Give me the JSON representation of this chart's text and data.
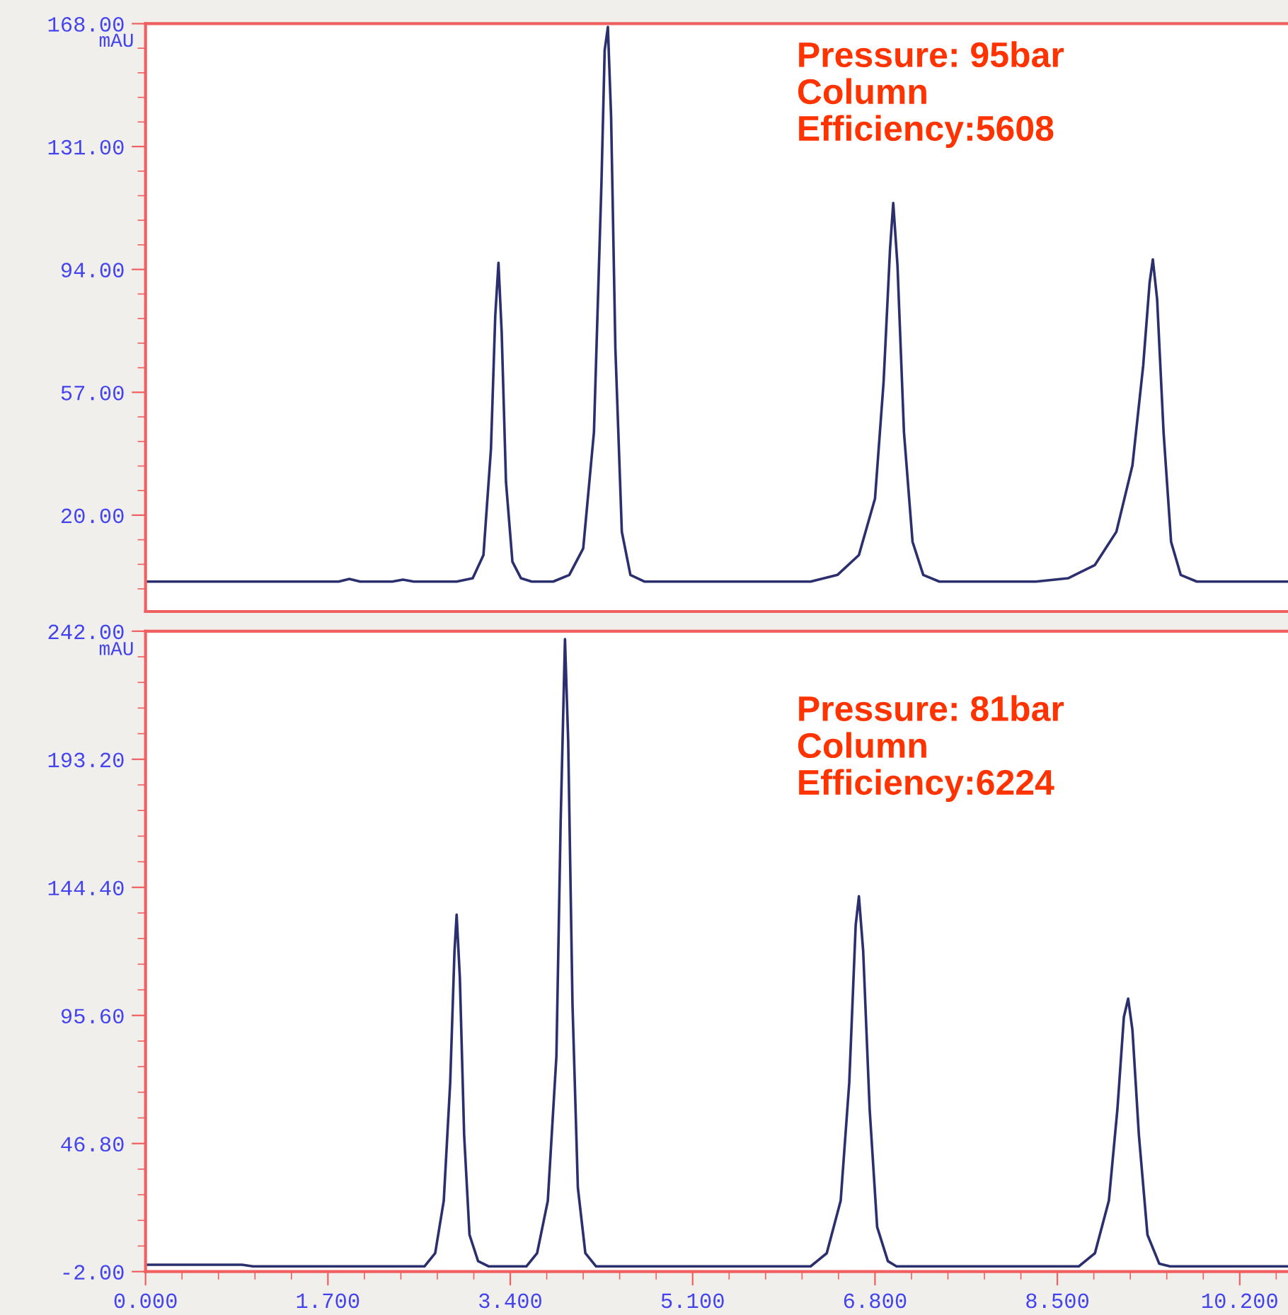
{
  "chart_data": [
    {
      "type": "line",
      "ylabel": "mAU",
      "annotations": [
        "Pressure: 95bar\nColumn\nEfficiency:5608"
      ],
      "tick_labels": "y",
      "grid": false,
      "xlim": [
        0,
        10.65
      ],
      "ylim": [
        -9,
        168
      ],
      "yticks": [
        {
          "value": 20,
          "label": "20.00"
        },
        {
          "value": 57,
          "label": "57.00"
        },
        {
          "value": 94,
          "label": "94.00"
        },
        {
          "value": 131,
          "label": "131.00"
        },
        {
          "value": 168,
          "label": "168.00"
        }
      ],
      "series": [
        {
          "color": "#2b2f6e",
          "x": [
            0,
            1.0,
            1.8,
            1.9,
            2.0,
            2.3,
            2.4,
            2.5,
            2.9,
            3.05,
            3.15,
            3.22,
            3.26,
            3.29,
            3.32,
            3.36,
            3.42,
            3.5,
            3.6,
            3.8,
            3.95,
            4.08,
            4.18,
            4.25,
            4.28,
            4.31,
            4.34,
            4.38,
            4.44,
            4.52,
            4.65,
            5.0,
            6.2,
            6.45,
            6.65,
            6.8,
            6.88,
            6.94,
            6.97,
            7.01,
            7.07,
            7.15,
            7.25,
            7.4,
            8.3,
            8.6,
            8.85,
            9.05,
            9.2,
            9.3,
            9.36,
            9.39,
            9.43,
            9.49,
            9.56,
            9.65,
            9.8,
            10.65
          ],
          "values": [
            0,
            0,
            0,
            0.8,
            0,
            0,
            0.6,
            0,
            0,
            1,
            8,
            40,
            80,
            96,
            75,
            30,
            6,
            1,
            0,
            0,
            2,
            10,
            45,
            120,
            160,
            167,
            140,
            70,
            15,
            2,
            0,
            0,
            0,
            2,
            8,
            25,
            60,
            100,
            114,
            95,
            45,
            12,
            2,
            0,
            0,
            1,
            5,
            15,
            35,
            65,
            90,
            97,
            85,
            45,
            12,
            2,
            0,
            0
          ]
        }
      ]
    },
    {
      "type": "line",
      "ylabel": "mAU",
      "annotations": [
        "Pressure: 81bar\nColumn\nEfficiency:6224"
      ],
      "grid": false,
      "xlim": [
        0,
        10.65
      ],
      "ylim": [
        -2,
        242
      ],
      "xticks": [
        {
          "value": 0,
          "label": "0.000"
        },
        {
          "value": 1.7,
          "label": "1.700"
        },
        {
          "value": 3.4,
          "label": "3.400"
        },
        {
          "value": 5.1,
          "label": "5.100"
        },
        {
          "value": 6.8,
          "label": "6.800"
        },
        {
          "value": 8.5,
          "label": "8.500"
        },
        {
          "value": 10.2,
          "label": "10.200"
        }
      ],
      "yticks": [
        {
          "value": -2,
          "label": "-2.00"
        },
        {
          "value": 46.8,
          "label": "46.80"
        },
        {
          "value": 95.6,
          "label": "95.60"
        },
        {
          "value": 144.4,
          "label": "144.40"
        },
        {
          "value": 193.2,
          "label": "193.20"
        },
        {
          "value": 242,
          "label": "242.00"
        }
      ],
      "series": [
        {
          "color": "#2b2f6e",
          "x": [
            0,
            0.9,
            1.0,
            2.6,
            2.7,
            2.78,
            2.84,
            2.88,
            2.9,
            2.93,
            2.97,
            3.02,
            3.1,
            3.2,
            3.55,
            3.65,
            3.75,
            3.83,
            3.87,
            3.91,
            3.94,
            3.98,
            4.03,
            4.1,
            4.2,
            6.2,
            6.35,
            6.48,
            6.56,
            6.62,
            6.65,
            6.69,
            6.75,
            6.82,
            6.92,
            7.0,
            8.7,
            8.85,
            8.98,
            9.06,
            9.12,
            9.16,
            9.2,
            9.26,
            9.34,
            9.45,
            9.55,
            10.65
          ],
          "values": [
            0.6,
            0.6,
            0,
            0,
            5,
            25,
            70,
            120,
            134,
            110,
            50,
            12,
            2,
            0,
            0,
            5,
            25,
            80,
            170,
            239,
            200,
            100,
            30,
            5,
            0,
            0,
            5,
            25,
            70,
            130,
            141,
            120,
            60,
            15,
            2,
            0,
            0,
            5,
            25,
            60,
            95,
            102,
            90,
            50,
            12,
            1,
            0,
            0
          ]
        }
      ]
    }
  ]
}
